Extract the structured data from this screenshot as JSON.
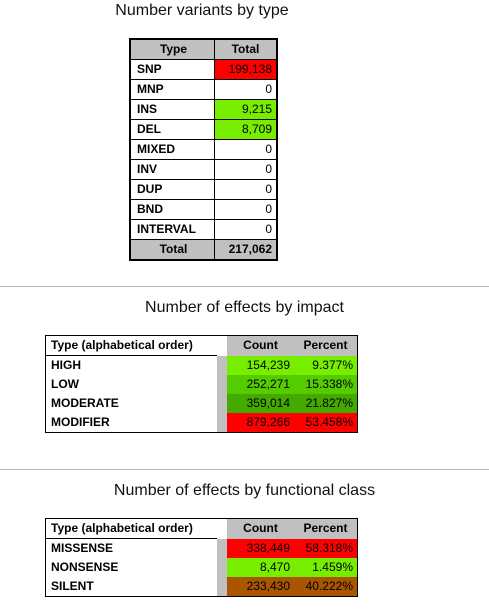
{
  "sections": {
    "variants": {
      "title": "Number variants by type",
      "header": {
        "type": "Type",
        "total": "Total"
      },
      "rows": [
        {
          "type": "SNP",
          "total": "199,138",
          "color": "#ff0000"
        },
        {
          "type": "MNP",
          "total": "0",
          "color": "#ffffff"
        },
        {
          "type": "INS",
          "total": "9,215",
          "color": "#77ee00"
        },
        {
          "type": "DEL",
          "total": "8,709",
          "color": "#77ee00"
        },
        {
          "type": "MIXED",
          "total": "0",
          "color": "#ffffff"
        },
        {
          "type": "INV",
          "total": "0",
          "color": "#ffffff"
        },
        {
          "type": "DUP",
          "total": "0",
          "color": "#ffffff"
        },
        {
          "type": "BND",
          "total": "0",
          "color": "#ffffff"
        },
        {
          "type": "INTERVAL",
          "total": "0",
          "color": "#ffffff"
        }
      ],
      "footer": {
        "label": "Total",
        "value": "217,062"
      }
    },
    "impact": {
      "title": "Number of effects by impact",
      "header": {
        "type": "Type (alphabetical order)",
        "count": "Count",
        "percent": "Percent"
      },
      "rows": [
        {
          "type": "HIGH",
          "count": "154,239",
          "percent": "9.377%",
          "color": "#77ee00"
        },
        {
          "type": "LOW",
          "count": "252,271",
          "percent": "15.338%",
          "color": "#55cc00"
        },
        {
          "type": "MODERATE",
          "count": "359,014",
          "percent": "21.827%",
          "color": "#44aa00"
        },
        {
          "type": "MODIFIER",
          "count": "879,266",
          "percent": "53.458%",
          "color": "#ff0000"
        }
      ]
    },
    "functional_class": {
      "title": "Number of effects by functional class",
      "header": {
        "type": "Type (alphabetical order)",
        "count": "Count",
        "percent": "Percent"
      },
      "rows": [
        {
          "type": "MISSENSE",
          "count": "338,449",
          "percent": "58.318%",
          "color": "#ff0000"
        },
        {
          "type": "NONSENSE",
          "count": "8,470",
          "percent": "1.459%",
          "color": "#77ee00"
        },
        {
          "type": "SILENT",
          "count": "233,430",
          "percent": "40.222%",
          "color": "#aa5500"
        }
      ]
    }
  }
}
